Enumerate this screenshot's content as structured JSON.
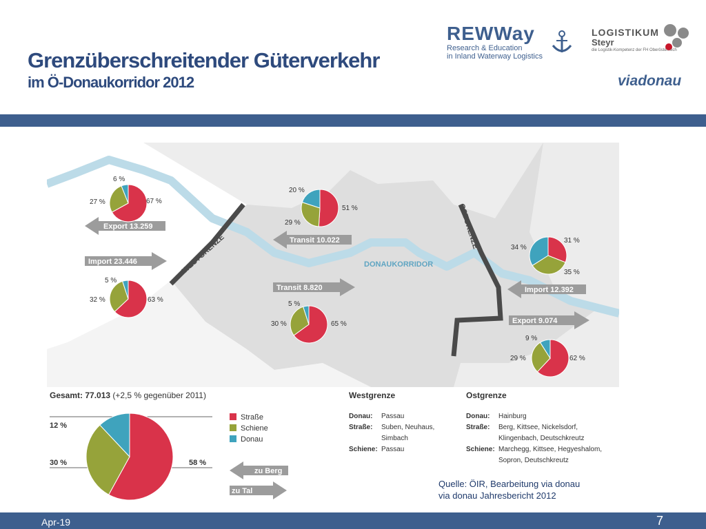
{
  "header": {
    "title_line1": "Grenzüberschreitender Güterverkehr",
    "title_line2": "im Ö-Donaukorridor 2012"
  },
  "logos": {
    "rewway_title": "REWWay",
    "rewway_line1": "Research & Education",
    "rewway_line2": "in Inland Waterway Logistics",
    "logistikum_line1": "LOGISTIKUM",
    "logistikum_line2": "Steyr",
    "logistikum_tagline": "die Logistik-Kompetenz der FH Oberösterreich",
    "viadonau": "viadonau"
  },
  "colors": {
    "strasse": "#d9334a",
    "schiene": "#96a33a",
    "donau": "#3fa3bd",
    "arrow": "#9c9c9c",
    "border": "#4a4a4a",
    "river": "#bcdbe8",
    "bar": "#3e5f8e"
  },
  "map": {
    "westgrenze_label": "WESTGRENZE",
    "ostgrenze_label": "OSTGRENZE",
    "donaukorridor_label": "DONAUKORRIDOR",
    "arrows": {
      "west_export": "Export  13.259",
      "west_import": "Import  23.446",
      "transit_upper": "Transit  10.022",
      "transit_lower": "Transit  8.820",
      "east_import": "Import  12.392",
      "east_export": "Export  9.074",
      "legend_berg": "zu Berg",
      "legend_tal": "zu Tal"
    },
    "pie_labels": {
      "west_export": [
        "67 %",
        "27 %",
        "6 %"
      ],
      "west_import": [
        "63 %",
        "32 %",
        "5 %"
      ],
      "transit_upper": [
        "51 %",
        "29 %",
        "20 %"
      ],
      "transit_lower": [
        "65 %",
        "30 %",
        "5 %"
      ],
      "east_import": [
        "31 %",
        "35 %",
        "34 %"
      ],
      "east_export": [
        "62 %",
        "29 %",
        "9 %"
      ]
    }
  },
  "total": {
    "label": "Gesamt:",
    "value": "77.013",
    "change": "(+2,5 % gegenüber 2011)",
    "labels": [
      "58 %",
      "30 %",
      "12 %"
    ],
    "legend": [
      "Straße",
      "Schiene",
      "Donau"
    ]
  },
  "westgrenze": {
    "heading": "Westgrenze",
    "rows": [
      {
        "k": "Donau:",
        "v": "Passau"
      },
      {
        "k": "Straße:",
        "v": "Suben, Neuhaus,"
      },
      {
        "k": "",
        "v": "Simbach"
      },
      {
        "k": "Schiene:",
        "v": "Passau"
      }
    ]
  },
  "ostgrenze": {
    "heading": "Ostgrenze",
    "rows": [
      {
        "k": "Donau:",
        "v": "Hainburg"
      },
      {
        "k": "Straße:",
        "v": "Berg, Kittsee, Nickelsdorf,"
      },
      {
        "k": "",
        "v": "Klingenbach, Deutschkreutz"
      },
      {
        "k": "Schiene:",
        "v": "Marchegg, Kittsee, Hegyeshalom,"
      },
      {
        "k": "",
        "v": "Sopron, Deutschkreutz"
      }
    ]
  },
  "source": {
    "line1": "Quelle: ÖIR, Bearbeitung via donau",
    "line2": "via donau Jahresbericht 2012"
  },
  "footer": {
    "date": "Apr-19",
    "page": "7"
  },
  "chart_data": [
    {
      "type": "pie",
      "name": "Export Westgrenze",
      "categories": [
        "Straße",
        "Schiene",
        "Donau"
      ],
      "values": [
        67,
        27,
        6
      ]
    },
    {
      "type": "pie",
      "name": "Import Westgrenze",
      "categories": [
        "Straße",
        "Schiene",
        "Donau"
      ],
      "values": [
        63,
        32,
        5
      ]
    },
    {
      "type": "pie",
      "name": "Transit 10.022",
      "categories": [
        "Straße",
        "Schiene",
        "Donau"
      ],
      "values": [
        51,
        29,
        20
      ]
    },
    {
      "type": "pie",
      "name": "Transit 8.820",
      "categories": [
        "Straße",
        "Schiene",
        "Donau"
      ],
      "values": [
        65,
        30,
        5
      ]
    },
    {
      "type": "pie",
      "name": "Import Ostgrenze",
      "categories": [
        "Straße",
        "Schiene",
        "Donau"
      ],
      "values": [
        31,
        35,
        34
      ]
    },
    {
      "type": "pie",
      "name": "Export Ostgrenze",
      "categories": [
        "Straße",
        "Schiene",
        "Donau"
      ],
      "values": [
        62,
        29,
        9
      ]
    },
    {
      "type": "pie",
      "name": "Gesamt",
      "categories": [
        "Straße",
        "Schiene",
        "Donau"
      ],
      "values": [
        58,
        30,
        12
      ]
    }
  ]
}
